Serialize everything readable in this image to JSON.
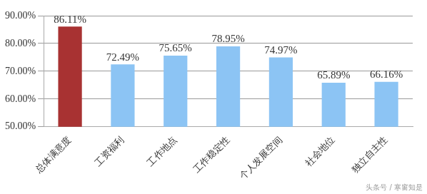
{
  "chart_data": {
    "type": "bar",
    "categories": [
      "总体满意度",
      "工资福利",
      "工作地点",
      "工作稳定性",
      "个人发展空间",
      "社会地位",
      "独立自主性"
    ],
    "values": [
      86.11,
      72.49,
      75.65,
      78.95,
      74.97,
      65.89,
      66.16
    ],
    "value_labels": [
      "86.11%",
      "72.49%",
      "75.65%",
      "78.95%",
      "74.97%",
      "65.89%",
      "66.16%"
    ],
    "colors": [
      "#a83232",
      "#8cc4f4",
      "#8cc4f4",
      "#8cc4f4",
      "#8cc4f4",
      "#8cc4f4",
      "#8cc4f4"
    ],
    "ylim": [
      50,
      90
    ],
    "yticks": [
      {
        "value": 50,
        "label": "50.00%"
      },
      {
        "value": 60,
        "label": "60.00%"
      },
      {
        "value": 70,
        "label": "70.00%"
      },
      {
        "value": 80,
        "label": "80.00%"
      },
      {
        "value": 90,
        "label": "90.00%"
      }
    ],
    "grid": true,
    "data_labels": true,
    "annotations": [
      "头条号 / 寒窗知是"
    ]
  }
}
